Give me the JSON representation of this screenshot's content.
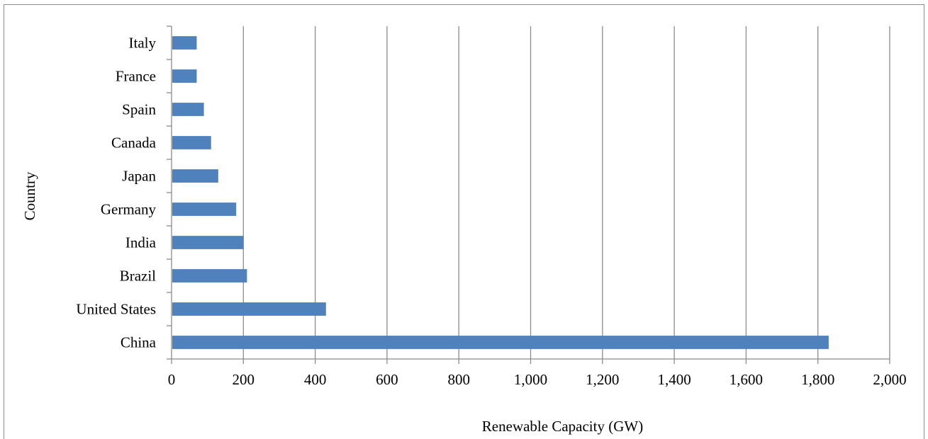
{
  "chart_data": {
    "type": "bar",
    "orientation": "horizontal",
    "categories": [
      "China",
      "United States",
      "Brazil",
      "India",
      "Germany",
      "Japan",
      "Canada",
      "Spain",
      "France",
      "Italy"
    ],
    "values": [
      1830,
      430,
      210,
      200,
      180,
      130,
      110,
      90,
      70,
      70
    ],
    "xlabel": "Renewable Capacity (GW)",
    "ylabel": "Country",
    "xlim": [
      0,
      2000
    ],
    "x_ticks": [
      0,
      200,
      400,
      600,
      800,
      1000,
      1200,
      1400,
      1600,
      1800,
      2000
    ],
    "x_tick_labels": [
      "0",
      "200",
      "400",
      "600",
      "800",
      "1,000",
      "1,200",
      "1,400",
      "1,600",
      "1,800",
      "2,000"
    ],
    "grid": "vertical",
    "legend": "none",
    "bar_color": "#4f81bd",
    "grid_color": "#8c8c8c"
  }
}
